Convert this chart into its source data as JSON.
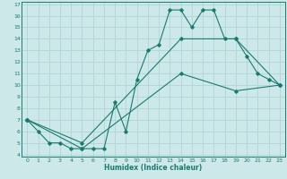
{
  "title": "",
  "xlabel": "Humidex (Indice chaleur)",
  "xlim": [
    -0.5,
    23.5
  ],
  "ylim": [
    3.8,
    17.2
  ],
  "yticks": [
    4,
    5,
    6,
    7,
    8,
    9,
    10,
    11,
    12,
    13,
    14,
    15,
    16,
    17
  ],
  "xticks": [
    0,
    1,
    2,
    3,
    4,
    5,
    6,
    7,
    8,
    9,
    10,
    11,
    12,
    13,
    14,
    15,
    16,
    17,
    18,
    19,
    20,
    21,
    22,
    23
  ],
  "line_color": "#1a7a6e",
  "bg_color": "#cce8e8",
  "grid_color": "#aad0d0",
  "line1_x": [
    0,
    1,
    2,
    3,
    4,
    5,
    6,
    7,
    8,
    9,
    10,
    11,
    12,
    13,
    14,
    15,
    16,
    17,
    18,
    19,
    20,
    21,
    22,
    23
  ],
  "line1_y": [
    7,
    6,
    5,
    5,
    4.5,
    4.5,
    4.5,
    4.5,
    8.5,
    6,
    10.5,
    13,
    13.5,
    16.5,
    16.5,
    15,
    16.5,
    16.5,
    14,
    14,
    12.5,
    11,
    10.5,
    10
  ],
  "line2_x": [
    0,
    5,
    14,
    19,
    23
  ],
  "line2_y": [
    7,
    5,
    14,
    14,
    10
  ],
  "line3_x": [
    0,
    5,
    14,
    19,
    23
  ],
  "line3_y": [
    7,
    4.5,
    11,
    9.5,
    10
  ]
}
